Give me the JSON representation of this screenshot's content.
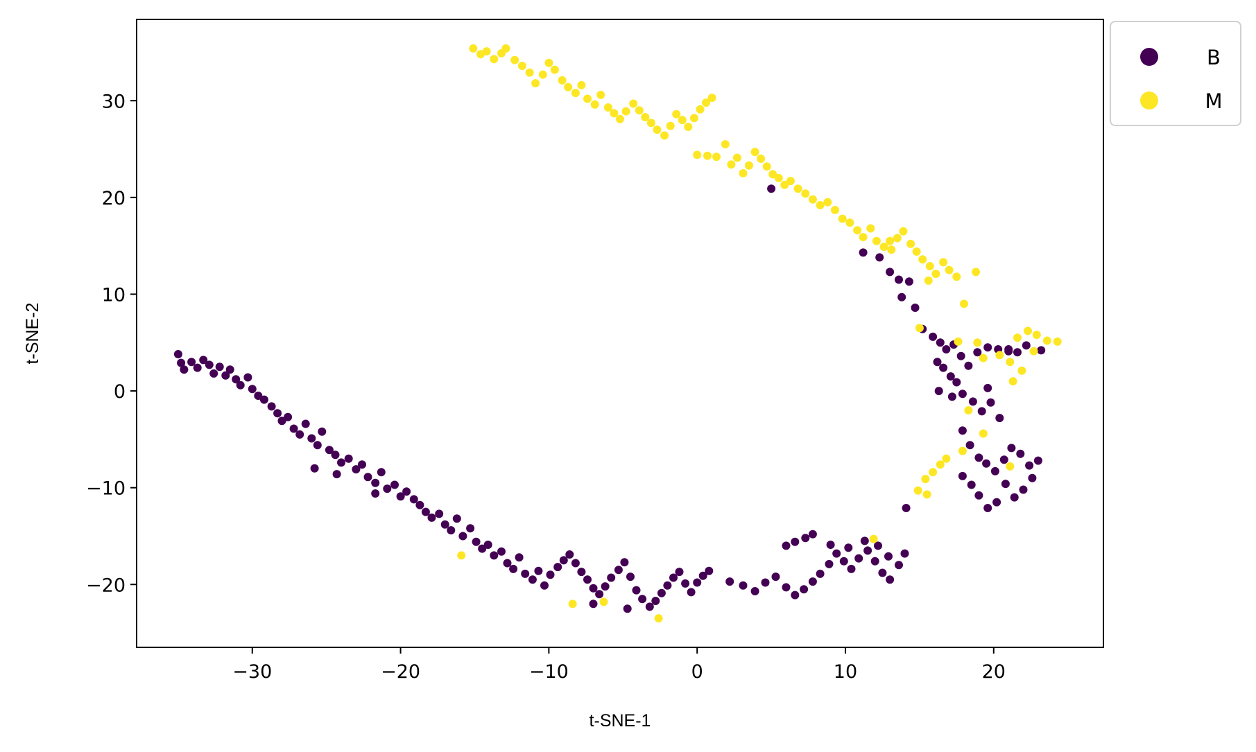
{
  "chart_data": {
    "type": "scatter",
    "title": "",
    "xlabel": "t-SNE-1",
    "ylabel": "t-SNE-2",
    "xlim": [
      -37.8,
      27.4
    ],
    "ylim": [
      -26.5,
      38.4
    ],
    "xticks": [
      -30,
      -20,
      -10,
      0,
      10,
      20
    ],
    "yticks": [
      -20,
      -10,
      0,
      10,
      20,
      30
    ],
    "xtick_labels": [
      "−30",
      "−20",
      "−10",
      "0",
      "10",
      "20"
    ],
    "ytick_labels": [
      "−20",
      "−10",
      "0",
      "10",
      "20",
      "30"
    ],
    "grid": false,
    "legend_position": "top-right, outside axes",
    "series": [
      {
        "name": "B",
        "color": "#440154",
        "points": [
          [
            -35,
            3.8
          ],
          [
            -34.8,
            2.9
          ],
          [
            -34.6,
            2.2
          ],
          [
            -34.1,
            3.0
          ],
          [
            -33.7,
            2.4
          ],
          [
            -33.3,
            3.2
          ],
          [
            -32.9,
            2.7
          ],
          [
            -32.6,
            1.8
          ],
          [
            -32.2,
            2.5
          ],
          [
            -31.8,
            1.6
          ],
          [
            -31.5,
            2.2
          ],
          [
            -31.1,
            1.2
          ],
          [
            -30.8,
            0.6
          ],
          [
            -30.3,
            1.4
          ],
          [
            -30.0,
            0.2
          ],
          [
            -29.6,
            -0.5
          ],
          [
            -29.2,
            -0.9
          ],
          [
            -28.7,
            -1.6
          ],
          [
            -28.3,
            -2.3
          ],
          [
            -28.0,
            -3.1
          ],
          [
            -27.6,
            -2.7
          ],
          [
            -27.2,
            -3.9
          ],
          [
            -26.8,
            -4.5
          ],
          [
            -26.4,
            -3.4
          ],
          [
            -26.0,
            -4.9
          ],
          [
            -25.6,
            -5.6
          ],
          [
            -25.3,
            -4.2
          ],
          [
            -24.8,
            -6.1
          ],
          [
            -24.4,
            -6.6
          ],
          [
            -24.0,
            -7.4
          ],
          [
            -23.5,
            -7.0
          ],
          [
            -23.0,
            -8.1
          ],
          [
            -22.6,
            -7.6
          ],
          [
            -22.2,
            -8.9
          ],
          [
            -21.7,
            -9.5
          ],
          [
            -21.3,
            -8.4
          ],
          [
            -20.9,
            -10.1
          ],
          [
            -20.4,
            -9.7
          ],
          [
            -20.0,
            -10.9
          ],
          [
            -19.6,
            -10.4
          ],
          [
            -19.1,
            -11.2
          ],
          [
            -18.7,
            -11.8
          ],
          [
            -18.3,
            -12.5
          ],
          [
            -17.9,
            -13.1
          ],
          [
            -17.4,
            -12.7
          ],
          [
            -17.0,
            -13.8
          ],
          [
            -16.6,
            -14.4
          ],
          [
            -16.2,
            -13.2
          ],
          [
            -15.8,
            -15.0
          ],
          [
            -15.3,
            -14.2
          ],
          [
            -14.9,
            -15.6
          ],
          [
            -14.5,
            -16.3
          ],
          [
            -14.1,
            -15.9
          ],
          [
            -13.7,
            -17.0
          ],
          [
            -13.2,
            -16.6
          ],
          [
            -12.8,
            -17.8
          ],
          [
            -12.4,
            -18.4
          ],
          [
            -12.0,
            -17.2
          ],
          [
            -11.6,
            -18.9
          ],
          [
            -11.1,
            -19.5
          ],
          [
            -10.7,
            -18.6
          ],
          [
            -10.3,
            -20.1
          ],
          [
            -9.9,
            -19.0
          ],
          [
            -9.4,
            -18.2
          ],
          [
            -9.0,
            -17.5
          ],
          [
            -8.6,
            -16.9
          ],
          [
            -8.2,
            -17.8
          ],
          [
            -7.8,
            -18.7
          ],
          [
            -7.4,
            -19.5
          ],
          [
            -7.0,
            -20.4
          ],
          [
            -6.6,
            -21.0
          ],
          [
            -6.2,
            -20.2
          ],
          [
            -5.8,
            -19.3
          ],
          [
            -5.3,
            -18.5
          ],
          [
            -4.9,
            -17.7
          ],
          [
            -4.5,
            -19.2
          ],
          [
            -4.1,
            -20.6
          ],
          [
            -3.7,
            -21.5
          ],
          [
            -3.2,
            -22.3
          ],
          [
            -2.8,
            -21.7
          ],
          [
            -2.4,
            -20.9
          ],
          [
            -2.0,
            -20.1
          ],
          [
            -1.6,
            -19.3
          ],
          [
            -1.2,
            -18.7
          ],
          [
            -0.8,
            -19.9
          ],
          [
            -0.4,
            -20.8
          ],
          [
            0.0,
            -19.8
          ],
          [
            0.4,
            -19.1
          ],
          [
            0.8,
            -18.6
          ],
          [
            2.2,
            -19.7
          ],
          [
            3.1,
            -20.1
          ],
          [
            3.9,
            -20.7
          ],
          [
            4.6,
            -19.8
          ],
          [
            5.3,
            -19.2
          ],
          [
            6.0,
            -20.3
          ],
          [
            6.6,
            -21.1
          ],
          [
            7.2,
            -20.5
          ],
          [
            7.8,
            -19.7
          ],
          [
            8.3,
            -18.9
          ],
          [
            8.9,
            -17.9
          ],
          [
            9.4,
            -16.8
          ],
          [
            9.9,
            -17.6
          ],
          [
            10.4,
            -18.4
          ],
          [
            10.9,
            -17.3
          ],
          [
            11.5,
            -16.5
          ],
          [
            12.0,
            -17.6
          ],
          [
            12.5,
            -18.8
          ],
          [
            13.0,
            -19.5
          ],
          [
            13.6,
            -18.0
          ],
          [
            14.0,
            -16.8
          ],
          [
            6.0,
            -16.0
          ],
          [
            6.6,
            -15.6
          ],
          [
            7.3,
            -15.2
          ],
          [
            7.8,
            -14.8
          ],
          [
            9.0,
            -15.9
          ],
          [
            10.2,
            -16.2
          ],
          [
            11.3,
            -15.5
          ],
          [
            12.2,
            -16.0
          ],
          [
            12.9,
            -17.1
          ],
          [
            11.2,
            14.3
          ],
          [
            12.3,
            13.8
          ],
          [
            13.0,
            12.3
          ],
          [
            13.6,
            11.5
          ],
          [
            14.3,
            11.3
          ],
          [
            14.7,
            8.6
          ],
          [
            13.8,
            9.7
          ],
          [
            15.2,
            6.4
          ],
          [
            15.9,
            5.6
          ],
          [
            16.4,
            5.0
          ],
          [
            16.8,
            4.3
          ],
          [
            17.3,
            4.8
          ],
          [
            17.8,
            3.6
          ],
          [
            18.3,
            2.6
          ],
          [
            18.9,
            4.0
          ],
          [
            19.6,
            4.5
          ],
          [
            20.3,
            4.3
          ],
          [
            21.0,
            4.1
          ],
          [
            21.6,
            4.0
          ],
          [
            22.2,
            4.7
          ],
          [
            16.2,
            3.0
          ],
          [
            16.6,
            2.4
          ],
          [
            17.1,
            1.5
          ],
          [
            17.5,
            0.9
          ],
          [
            16.3,
            0.0
          ],
          [
            17.2,
            -0.6
          ],
          [
            17.9,
            -0.3
          ],
          [
            18.6,
            -1.1
          ],
          [
            19.2,
            -2.1
          ],
          [
            19.8,
            -1.2
          ],
          [
            20.4,
            -2.8
          ],
          [
            17.9,
            -4.1
          ],
          [
            18.4,
            -5.6
          ],
          [
            19.0,
            -6.9
          ],
          [
            19.5,
            -7.5
          ],
          [
            20.1,
            -8.3
          ],
          [
            20.7,
            -7.1
          ],
          [
            21.2,
            -5.9
          ],
          [
            21.8,
            -6.5
          ],
          [
            22.4,
            -7.7
          ],
          [
            23.0,
            -7.2
          ],
          [
            22.6,
            -9.0
          ],
          [
            22.0,
            -10.2
          ],
          [
            21.4,
            -11.0
          ],
          [
            20.8,
            -9.6
          ],
          [
            20.2,
            -11.5
          ],
          [
            19.6,
            -12.1
          ],
          [
            19.0,
            -10.8
          ],
          [
            18.5,
            -9.7
          ],
          [
            17.9,
            -8.8
          ],
          [
            23.2,
            4.2
          ],
          [
            21.0,
            4.3
          ],
          [
            19.6,
            0.3
          ],
          [
            5.0,
            20.9
          ],
          [
            14.1,
            -12.1
          ],
          [
            -4.7,
            -22.5
          ],
          [
            -7.0,
            -22.0
          ],
          [
            -25.8,
            -8.0
          ],
          [
            -24.3,
            -8.6
          ],
          [
            -21.7,
            -10.6
          ]
        ]
      },
      {
        "name": "M",
        "color": "#fde725",
        "points": [
          [
            -15.1,
            35.4
          ],
          [
            -14.6,
            34.8
          ],
          [
            -14.2,
            35.1
          ],
          [
            -13.7,
            34.3
          ],
          [
            -13.2,
            34.9
          ],
          [
            -12.9,
            35.4
          ],
          [
            -12.3,
            34.2
          ],
          [
            -11.8,
            33.6
          ],
          [
            -11.3,
            32.9
          ],
          [
            -10.9,
            31.8
          ],
          [
            -10.4,
            32.7
          ],
          [
            -10.0,
            33.9
          ],
          [
            -9.6,
            33.2
          ],
          [
            -9.1,
            32.1
          ],
          [
            -8.7,
            31.4
          ],
          [
            -8.2,
            30.8
          ],
          [
            -7.8,
            31.6
          ],
          [
            -7.4,
            30.2
          ],
          [
            -6.9,
            29.6
          ],
          [
            -6.5,
            30.6
          ],
          [
            -6.0,
            29.3
          ],
          [
            -5.6,
            28.7
          ],
          [
            -5.2,
            28.1
          ],
          [
            -4.8,
            28.9
          ],
          [
            -4.3,
            29.7
          ],
          [
            -3.9,
            29.0
          ],
          [
            -3.5,
            28.3
          ],
          [
            -3.1,
            27.7
          ],
          [
            -2.7,
            27.0
          ],
          [
            -2.2,
            26.4
          ],
          [
            -1.8,
            27.4
          ],
          [
            -1.4,
            28.6
          ],
          [
            -1.0,
            28.0
          ],
          [
            -0.6,
            27.3
          ],
          [
            -0.2,
            28.2
          ],
          [
            0.2,
            29.1
          ],
          [
            0.6,
            29.8
          ],
          [
            1.0,
            30.3
          ],
          [
            0.0,
            24.4
          ],
          [
            0.7,
            24.3
          ],
          [
            1.3,
            24.2
          ],
          [
            1.9,
            25.5
          ],
          [
            2.3,
            23.4
          ],
          [
            2.7,
            24.1
          ],
          [
            3.1,
            22.5
          ],
          [
            3.5,
            23.3
          ],
          [
            3.9,
            24.7
          ],
          [
            4.3,
            24.0
          ],
          [
            4.7,
            23.2
          ],
          [
            5.1,
            22.4
          ],
          [
            5.5,
            22.0
          ],
          [
            5.9,
            21.3
          ],
          [
            6.3,
            21.7
          ],
          [
            6.8,
            20.9
          ],
          [
            7.3,
            20.4
          ],
          [
            7.8,
            19.8
          ],
          [
            8.3,
            19.2
          ],
          [
            8.8,
            19.5
          ],
          [
            9.3,
            18.7
          ],
          [
            9.8,
            17.8
          ],
          [
            10.3,
            17.4
          ],
          [
            10.8,
            16.6
          ],
          [
            11.2,
            15.9
          ],
          [
            11.7,
            16.8
          ],
          [
            12.1,
            15.5
          ],
          [
            12.6,
            14.9
          ],
          [
            13.1,
            14.6
          ],
          [
            13.5,
            15.8
          ],
          [
            13.9,
            16.5
          ],
          [
            14.4,
            15.2
          ],
          [
            14.8,
            14.4
          ],
          [
            15.2,
            13.6
          ],
          [
            15.7,
            12.9
          ],
          [
            16.1,
            12.1
          ],
          [
            16.6,
            13.3
          ],
          [
            17.0,
            12.5
          ],
          [
            17.5,
            11.8
          ],
          [
            18.0,
            9.0
          ],
          [
            18.8,
            12.3
          ],
          [
            15.6,
            11.4
          ],
          [
            15.0,
            6.5
          ],
          [
            17.6,
            5.1
          ],
          [
            18.9,
            5.0
          ],
          [
            19.3,
            3.4
          ],
          [
            20.4,
            3.7
          ],
          [
            21.1,
            3.0
          ],
          [
            21.6,
            5.5
          ],
          [
            22.3,
            6.2
          ],
          [
            22.9,
            5.8
          ],
          [
            23.6,
            5.2
          ],
          [
            24.3,
            5.1
          ],
          [
            22.7,
            4.1
          ],
          [
            21.9,
            2.1
          ],
          [
            21.3,
            1.0
          ],
          [
            16.8,
            -7.0
          ],
          [
            16.4,
            -7.6
          ],
          [
            15.9,
            -8.4
          ],
          [
            15.4,
            -9.1
          ],
          [
            14.9,
            -10.3
          ],
          [
            15.5,
            -10.7
          ],
          [
            17.9,
            -6.2
          ],
          [
            19.3,
            -4.4
          ],
          [
            18.3,
            -2.0
          ],
          [
            21.1,
            -7.8
          ],
          [
            -15.9,
            -17.0
          ],
          [
            -8.4,
            -22.0
          ],
          [
            -6.3,
            -21.8
          ],
          [
            -2.6,
            -23.5
          ],
          [
            11.9,
            -15.3
          ],
          [
            13.0,
            15.5
          ]
        ]
      }
    ]
  }
}
